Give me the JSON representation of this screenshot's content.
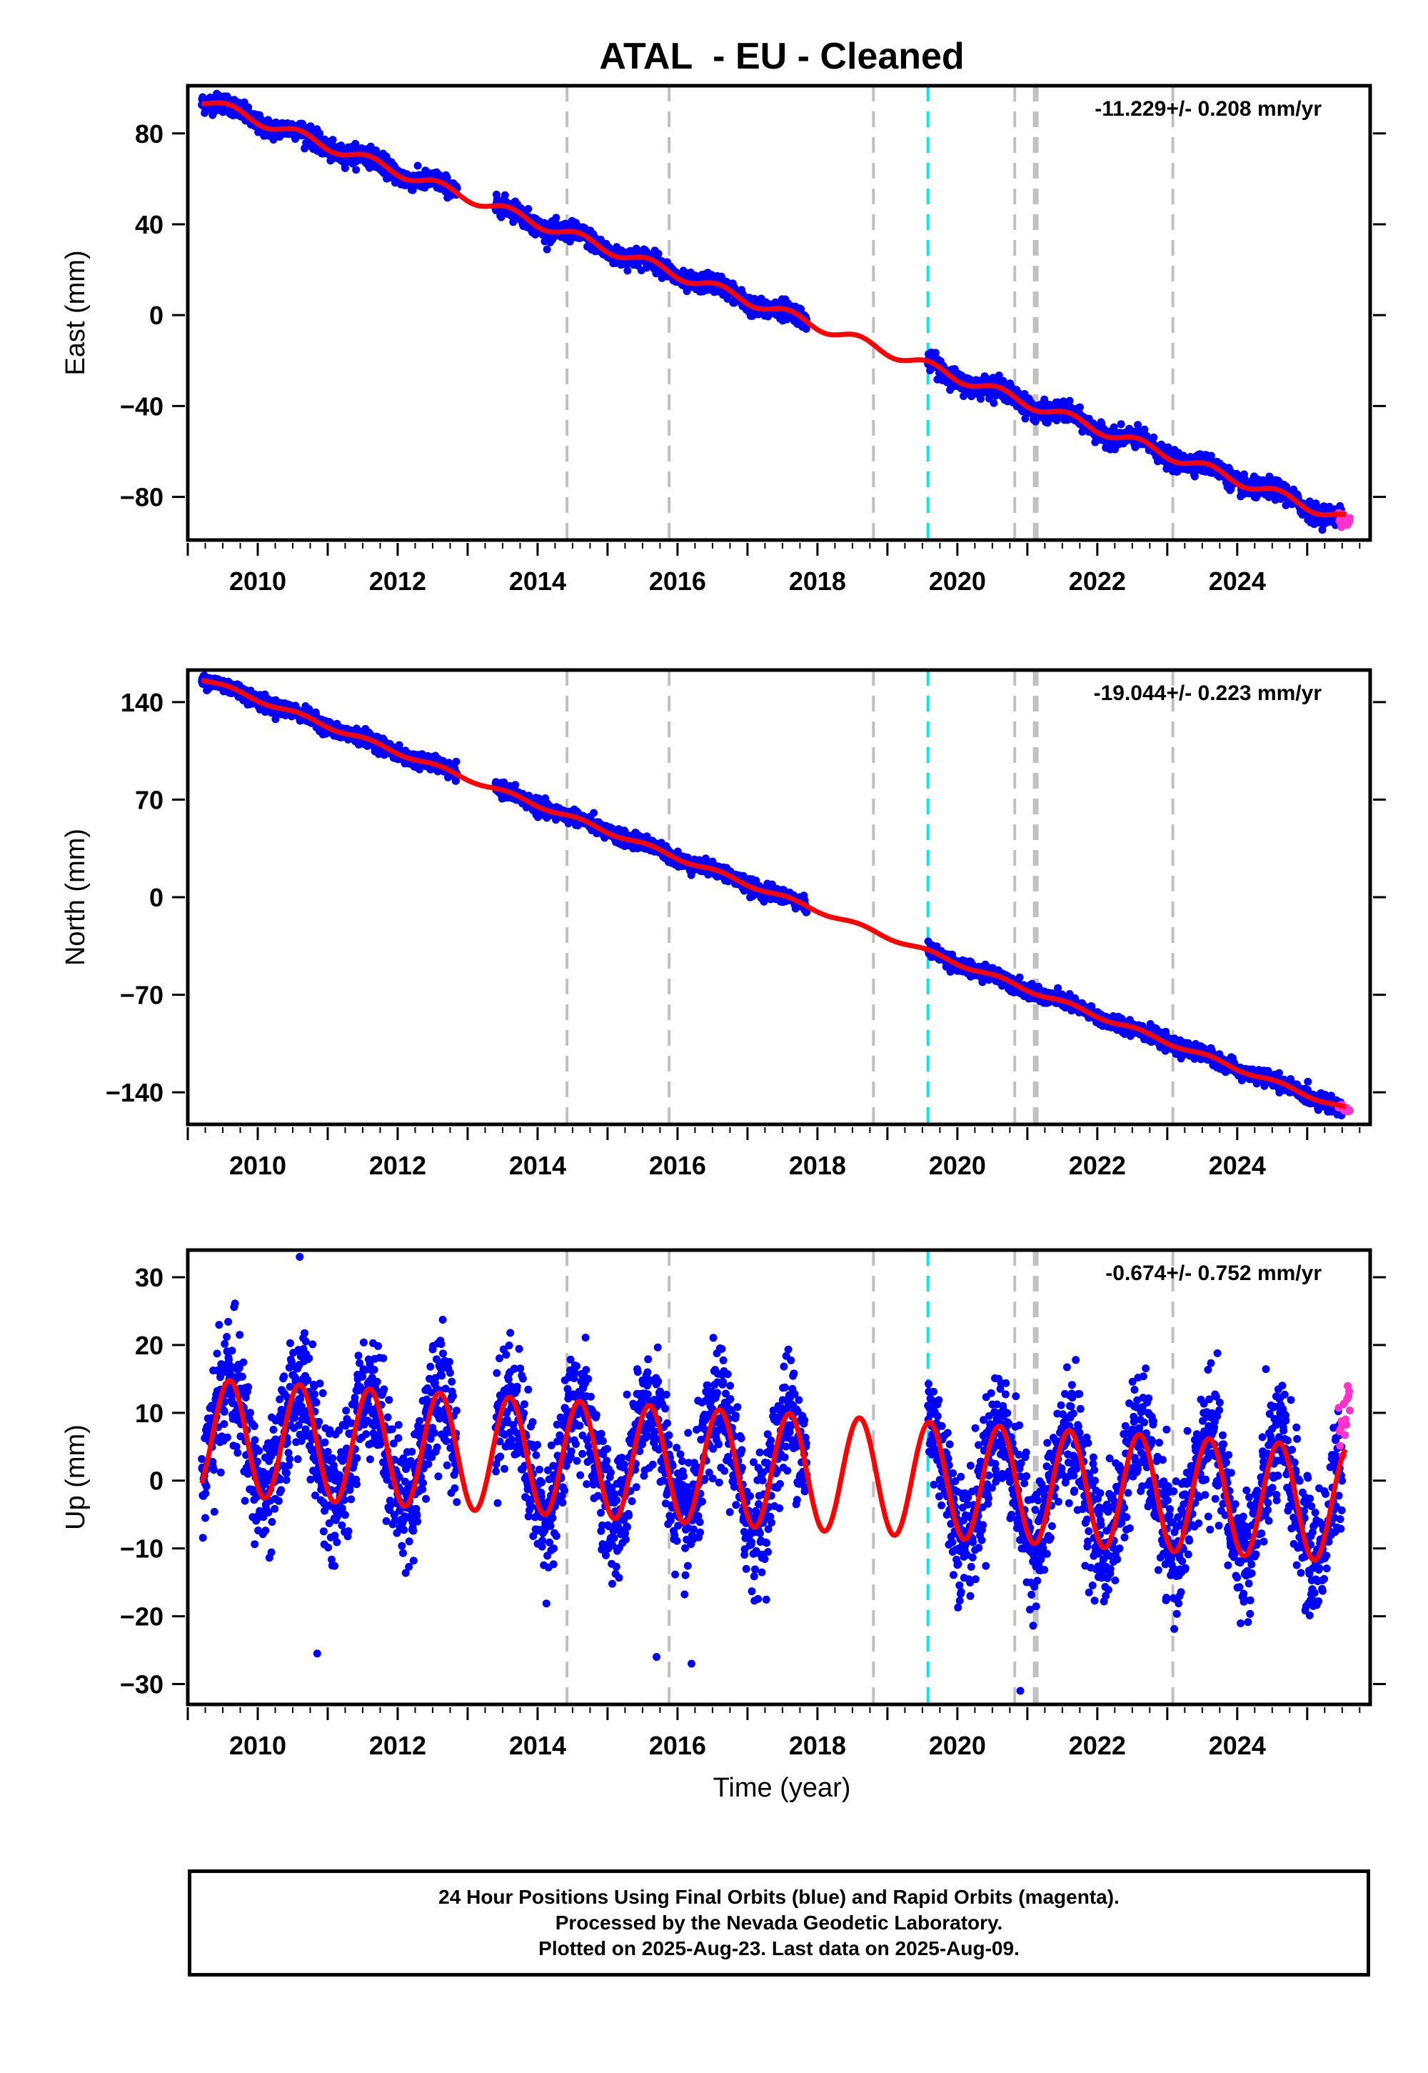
{
  "title": "ATAL  - EU - Cleaned",
  "xlabel": "Time (year)",
  "caption": {
    "line1": "24 Hour Positions Using Final Orbits (blue) and Rapid Orbits (magenta).",
    "line2": "Processed by the Nevada Geodetic Laboratory.",
    "line3": "Plotted on 2025-Aug-23. Last data on 2025-Aug-09."
  },
  "colors": {
    "final_orbits": "#0000ff",
    "rapid_orbits": "#ff33cc",
    "fit": "#ff0000",
    "event_gray": "#c0c0c0",
    "event_cyan": "#00e5ee"
  },
  "event_lines": [
    {
      "year": 2014.42,
      "color": "gray"
    },
    {
      "year": 2015.88,
      "color": "gray"
    },
    {
      "year": 2018.8,
      "color": "gray"
    },
    {
      "year": 2019.58,
      "color": "cyan"
    },
    {
      "year": 2020.82,
      "color": "gray"
    },
    {
      "year": 2021.1,
      "color": "gray"
    },
    {
      "year": 2021.14,
      "color": "gray"
    },
    {
      "year": 2023.08,
      "color": "gray"
    }
  ],
  "chart_data": [
    {
      "type": "scatter",
      "id": "east",
      "ylabel": "East (mm)",
      "rate_label": "-11.229+/- 0.208 mm/yr",
      "xlim": [
        2009.0,
        2025.9
      ],
      "ylim": [
        -99,
        101
      ],
      "xticks": [
        2010,
        2012,
        2014,
        2016,
        2018,
        2020,
        2022,
        2024
      ],
      "yticks": [
        -80,
        -40,
        0,
        40,
        80
      ],
      "series": [
        {
          "name": "Final Orbits (blue)",
          "kind": "points",
          "segments": [
            [
              2009.2,
              2012.85
            ],
            [
              2013.4,
              2017.85
            ],
            [
              2019.58,
              2025.5
            ]
          ],
          "trend": [
            [
              2009.2,
              95
            ],
            [
              2025.55,
              -90
            ]
          ],
          "seasonal_amp": 2.2,
          "noise": 2.0
        },
        {
          "name": "Rapid Orbits (magenta)",
          "kind": "points",
          "segments": [
            [
              2025.45,
              2025.61
            ]
          ],
          "trend": [
            [
              2025.45,
              -90
            ],
            [
              2025.61,
              -92
            ]
          ],
          "noise": 1.5
        },
        {
          "name": "fit",
          "kind": "line",
          "trend": [
            [
              2009.2,
              95
            ],
            [
              2025.55,
              -90
            ]
          ],
          "seasonal_amp": 2.2
        }
      ]
    },
    {
      "type": "scatter",
      "id": "north",
      "ylabel": "North (mm)",
      "rate_label": "-19.044+/- 0.223 mm/yr",
      "xlim": [
        2009.0,
        2025.9
      ],
      "ylim": [
        -163,
        163
      ],
      "xticks": [
        2010,
        2012,
        2014,
        2016,
        2018,
        2020,
        2022,
        2024
      ],
      "yticks": [
        -140,
        -70,
        0,
        70,
        140
      ],
      "series": [
        {
          "name": "Final Orbits (blue)",
          "kind": "points",
          "segments": [
            [
              2009.2,
              2012.85
            ],
            [
              2013.4,
              2017.85
            ],
            [
              2019.58,
              2025.5
            ]
          ],
          "trend": [
            [
              2009.2,
              157
            ],
            [
              2025.55,
              -152
            ]
          ],
          "seasonal_amp": 1.5,
          "noise": 2.5
        },
        {
          "name": "Rapid Orbits (magenta)",
          "kind": "points",
          "segments": [
            [
              2025.45,
              2025.61
            ]
          ],
          "trend": [
            [
              2025.45,
              -150
            ],
            [
              2025.61,
              -153
            ]
          ],
          "noise": 1.5
        },
        {
          "name": "fit",
          "kind": "line",
          "trend": [
            [
              2009.2,
              157
            ],
            [
              2025.55,
              -152
            ]
          ],
          "seasonal_amp": 1.5
        }
      ]
    },
    {
      "type": "scatter",
      "id": "up",
      "ylabel": "Up (mm)",
      "rate_label": "-0.674+/- 0.752 mm/yr",
      "xlim": [
        2009.0,
        2025.9
      ],
      "ylim": [
        -33,
        34
      ],
      "xticks": [
        2010,
        2012,
        2014,
        2016,
        2018,
        2020,
        2022,
        2024
      ],
      "yticks": [
        -30,
        -20,
        -10,
        0,
        10,
        20,
        30
      ],
      "series": [
        {
          "name": "Final Orbits (blue)",
          "kind": "points",
          "segments": [
            [
              2009.2,
              2012.85
            ],
            [
              2013.4,
              2017.85
            ],
            [
              2019.58,
              2025.5
            ]
          ],
          "trend": [
            [
              2009.2,
              6.5
            ],
            [
              2025.55,
              -3.5
            ]
          ],
          "seasonal_amp": 8.5,
          "noise": 4.5
        },
        {
          "name": "Rapid Orbits (magenta)",
          "kind": "points",
          "segments": [
            [
              2025.45,
              2025.61
            ]
          ],
          "trend": [
            [
              2025.45,
              8
            ],
            [
              2025.61,
              12
            ]
          ],
          "noise": 3.0
        },
        {
          "name": "fit",
          "kind": "line",
          "trend": [
            [
              2009.2,
              6.5
            ],
            [
              2025.55,
              -3.5
            ]
          ],
          "seasonal_amp": 8.5
        }
      ],
      "outliers": [
        [
          2010.6,
          33
        ],
        [
          2010.85,
          -25.5
        ],
        [
          2015.7,
          -26
        ],
        [
          2016.2,
          -27
        ],
        [
          2020.9,
          -31
        ]
      ]
    }
  ]
}
